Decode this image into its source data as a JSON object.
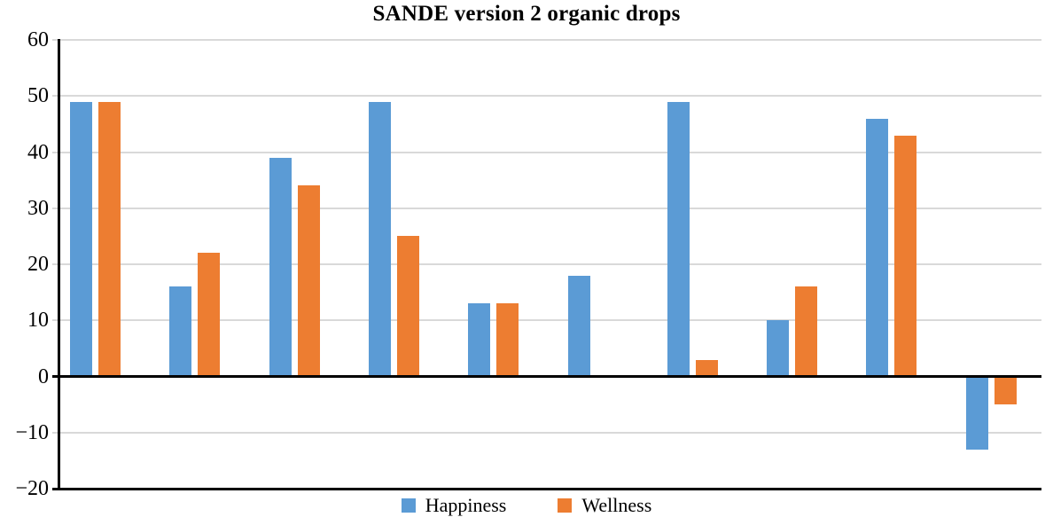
{
  "chart_data": {
    "type": "bar",
    "title": "SANDE version 2 organic drops",
    "categories": [
      "",
      "",
      "",
      "",
      "",
      "",
      "",
      "",
      "",
      ""
    ],
    "series": [
      {
        "name": "Happiness",
        "color": "#5B9BD5",
        "values": [
          49,
          16,
          39,
          49,
          13,
          18,
          49,
          10,
          46,
          -13
        ]
      },
      {
        "name": "Wellness",
        "color": "#ED7D31",
        "values": [
          49,
          22,
          34,
          25,
          13,
          0,
          3,
          16,
          43,
          -5
        ]
      }
    ],
    "xlabel": "",
    "ylabel": "",
    "ylim": [
      -20,
      60
    ],
    "yticks": [
      60,
      50,
      40,
      30,
      20,
      10,
      0,
      -10,
      -20
    ],
    "grid": true,
    "gridline_color": "#D9D9D9",
    "axis_color": "#000000",
    "legend_position": "bottom"
  }
}
